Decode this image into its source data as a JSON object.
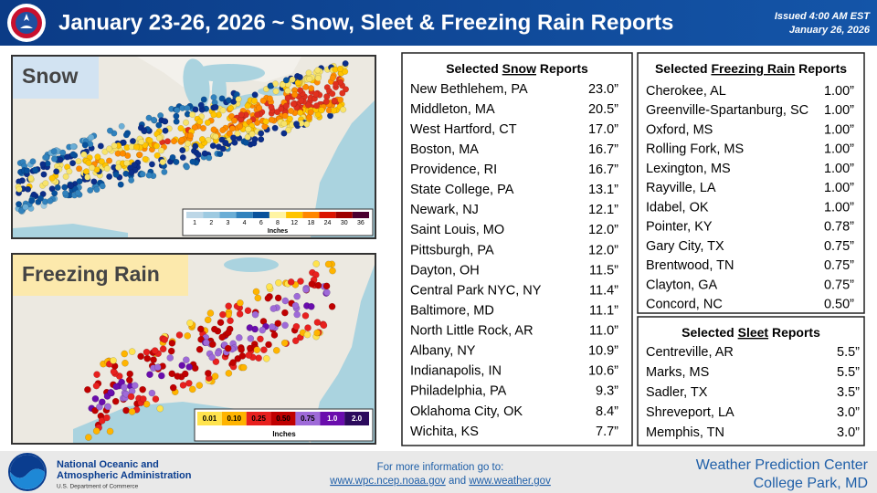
{
  "header": {
    "title": "January 23-26, 2026 ~ Snow, Sleet & Freezing Rain Reports",
    "issued": [
      "Issued 4:00 AM EST",
      "January 26, 2026"
    ]
  },
  "maps": {
    "snow": {
      "label": "Snow",
      "legend": {
        "labels": [
          "1",
          "2",
          "3",
          "4",
          "6",
          "8",
          "12",
          "18",
          "24",
          "30",
          "36"
        ],
        "unit": "Inches"
      }
    },
    "freezing_rain": {
      "label": "Freezing Rain",
      "legend": {
        "labels": [
          "0.01",
          "0.10",
          "0.25",
          "0.50",
          "0.75",
          "1.0",
          "2.0"
        ],
        "unit": "Inches"
      }
    }
  },
  "snow_table": {
    "title": [
      "Selected ",
      "Snow",
      " Reports"
    ],
    "rows": [
      [
        "New Bethlehem, PA",
        "23.0”"
      ],
      [
        "Middleton, MA",
        "20.5”"
      ],
      [
        "West Hartford, CT",
        "17.0”"
      ],
      [
        "Boston, MA",
        "16.7”"
      ],
      [
        "Providence, RI",
        "16.7”"
      ],
      [
        "State College, PA",
        "13.1”"
      ],
      [
        "Newark, NJ",
        "12.1”"
      ],
      [
        "Saint Louis, MO",
        "12.0”"
      ],
      [
        "Pittsburgh, PA",
        "12.0”"
      ],
      [
        "Dayton, OH",
        "11.5”"
      ],
      [
        "Central Park NYC, NY",
        "11.4”"
      ],
      [
        "Baltimore, MD",
        "11.1”"
      ],
      [
        "North Little Rock, AR",
        "11.0”"
      ],
      [
        "Albany, NY",
        "10.9”"
      ],
      [
        "Indianapolis, IN",
        "10.6”"
      ],
      [
        "Philadelphia, PA",
        "9.3”"
      ],
      [
        "Oklahoma City, OK",
        "8.4”"
      ],
      [
        "Wichita, KS",
        "7.7”"
      ]
    ]
  },
  "freezing_rain_table": {
    "title": [
      "Selected ",
      "Freezing Rain",
      " Reports"
    ],
    "rows": [
      [
        "Cherokee, AL",
        "1.00”"
      ],
      [
        "Greenville-Spartanburg, SC",
        "1.00”"
      ],
      [
        "Oxford, MS",
        "1.00”"
      ],
      [
        "Rolling Fork, MS",
        "1.00”"
      ],
      [
        "Lexington, MS",
        "1.00”"
      ],
      [
        "Rayville, LA",
        "1.00”"
      ],
      [
        "Idabel, OK",
        "1.00”"
      ],
      [
        "Pointer, KY",
        "0.78”"
      ],
      [
        "Gary City, TX",
        "0.75”"
      ],
      [
        "Brentwood, TN",
        "0.75”"
      ],
      [
        "Clayton, GA",
        "0.75”"
      ],
      [
        "Concord, NC",
        "0.50”"
      ]
    ]
  },
  "sleet_table": {
    "title": [
      "Selected ",
      "Sleet",
      " Reports"
    ],
    "rows": [
      [
        "Centreville, AR",
        "5.5”"
      ],
      [
        "Marks, MS",
        "5.5”"
      ],
      [
        "Sadler, TX",
        "3.5”"
      ],
      [
        "Shreveport, LA",
        "3.0”"
      ],
      [
        "Memphis, TN",
        "3.0”"
      ]
    ]
  },
  "footer": {
    "agency": [
      "National Oceanic and",
      "Atmospheric Administration"
    ],
    "department": "U.S. Department of Commerce",
    "info": "For more information go to:",
    "links": [
      "www.wpc.ncep.noaa.gov",
      " and ",
      "www.weather.gov"
    ],
    "center": [
      "Weather Prediction Center",
      "College Park, MD"
    ]
  }
}
